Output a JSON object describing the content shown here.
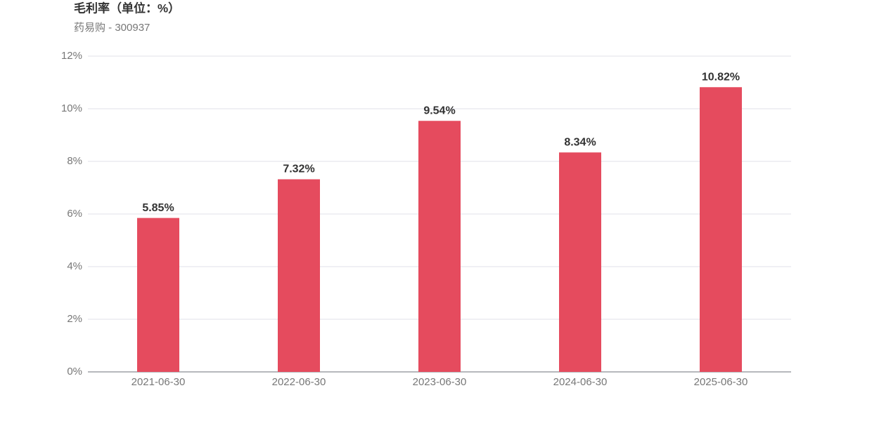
{
  "chart_data": {
    "type": "bar",
    "title": "毛利率（单位：%）",
    "subtitle": "药易购 - 300937",
    "categories": [
      "2021-06-30",
      "2022-06-30",
      "2023-06-30",
      "2024-06-30",
      "2025-06-30"
    ],
    "values": [
      5.85,
      7.32,
      9.54,
      8.34,
      10.82
    ],
    "value_labels": [
      "5.85%",
      "7.32%",
      "9.54%",
      "8.34%",
      "10.82%"
    ],
    "color": "#e54b5e",
    "ylim": [
      0,
      12
    ],
    "yticks": [
      {
        "value": 0,
        "label": "0%"
      },
      {
        "value": 2,
        "label": "2%"
      },
      {
        "value": 4,
        "label": "4%"
      },
      {
        "value": 6,
        "label": "6%"
      },
      {
        "value": 8,
        "label": "8%"
      },
      {
        "value": 10,
        "label": "10%"
      },
      {
        "value": 12,
        "label": "12%"
      }
    ],
    "grid": true
  }
}
